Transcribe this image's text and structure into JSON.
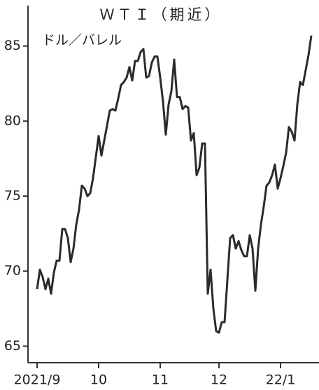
{
  "chart_data": {
    "type": "line",
    "title": "ＷＴＩ（期近）",
    "subtitle": "ドル／バレル",
    "categories": [
      "2021/9",
      null,
      null,
      null,
      null,
      null,
      null,
      null,
      null,
      null,
      null,
      null,
      null,
      null,
      null,
      null,
      null,
      null,
      null,
      null,
      null,
      null,
      "10",
      null,
      null,
      null,
      null,
      null,
      null,
      null,
      null,
      null,
      null,
      null,
      null,
      null,
      null,
      null,
      null,
      null,
      null,
      null,
      null,
      null,
      "11",
      null,
      null,
      null,
      null,
      null,
      null,
      null,
      null,
      null,
      null,
      null,
      null,
      null,
      null,
      null,
      null,
      null,
      null,
      null,
      null,
      "12",
      null,
      null,
      null,
      null,
      null,
      null,
      null,
      null,
      null,
      null,
      null,
      null,
      null,
      null,
      null,
      null,
      null,
      null,
      null,
      null,
      null,
      "22/1",
      null,
      null,
      null,
      null,
      null,
      null,
      null,
      null,
      null,
      null,
      null
    ],
    "series": [
      {
        "color": "#2b2b2b",
        "values": [
          68.8,
          70.1,
          69.6,
          68.8,
          69.5,
          68.5,
          69.9,
          70.7,
          70.7,
          72.8,
          72.8,
          72.2,
          70.6,
          71.5,
          73.1,
          74.1,
          75.7,
          75.5,
          75.0,
          75.2,
          76.2,
          77.6,
          79.0,
          77.7,
          78.7,
          79.7,
          80.7,
          80.8,
          80.7,
          81.5,
          82.4,
          82.6,
          82.9,
          83.6,
          82.7,
          84.0,
          84.0,
          84.6,
          84.8,
          82.9,
          83.0,
          83.9,
          84.3,
          84.3,
          82.9,
          81.3,
          79.1,
          81.1,
          82.0,
          84.1,
          81.6,
          81.6,
          80.8,
          81.0,
          80.9,
          78.7,
          79.2,
          76.4,
          76.9,
          78.5,
          78.5,
          68.5,
          70.1,
          67.5,
          66.0,
          65.9,
          66.6,
          66.6,
          69.4,
          72.2,
          72.4,
          71.5,
          72.0,
          71.4,
          71.0,
          71.0,
          72.4,
          71.5,
          68.7,
          71.5,
          73.1,
          74.3,
          75.7,
          75.9,
          76.4,
          77.1,
          75.5,
          76.2,
          77.0,
          77.9,
          79.6,
          79.3,
          78.7,
          81.1,
          82.6,
          82.4,
          83.4,
          84.4,
          85.7
        ]
      }
    ],
    "ylim": [
      63.9,
      87.6
    ],
    "yticks": [
      65,
      70,
      75,
      80,
      85
    ]
  }
}
